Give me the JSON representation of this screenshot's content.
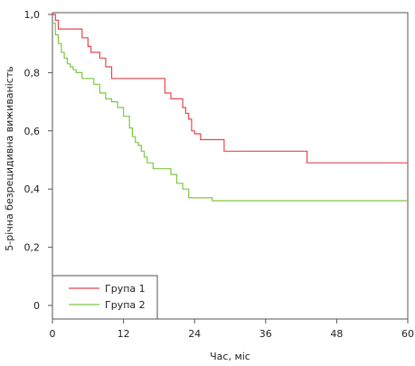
{
  "chart_data": {
    "type": "line",
    "title": "",
    "xlabel": "Час, міс",
    "ylabel": "5-річна безрецидивна виживаність",
    "xlim": [
      0,
      60
    ],
    "ylim": [
      0,
      1.0
    ],
    "x_ticks": [
      0,
      12,
      24,
      36,
      48,
      60
    ],
    "x_tick_labels": [
      "0",
      "12",
      "24",
      "36",
      "48",
      "60"
    ],
    "y_ticks": [
      0,
      0.2,
      0.4,
      0.6,
      0.8,
      1.0
    ],
    "y_tick_labels": [
      "0",
      "0,2",
      "0,4",
      "0,6",
      "0,8",
      "1,0"
    ],
    "grid": false,
    "legend_position": "bottom-left",
    "step": true,
    "series": [
      {
        "name": "Група 1",
        "color": "#e8474c",
        "x": [
          0,
          0.5,
          1,
          1.5,
          5,
          6,
          6.5,
          7,
          8,
          9,
          10,
          18,
          19,
          20,
          21,
          22,
          22.5,
          23,
          23.5,
          24,
          25,
          29,
          43,
          60
        ],
        "y": [
          1.0,
          0.98,
          0.95,
          0.95,
          0.92,
          0.89,
          0.87,
          0.87,
          0.85,
          0.82,
          0.78,
          0.78,
          0.73,
          0.71,
          0.71,
          0.68,
          0.66,
          0.64,
          0.6,
          0.59,
          0.57,
          0.53,
          0.49,
          0.49
        ]
      },
      {
        "name": "Група 2",
        "color": "#7ec843",
        "x": [
          0,
          0.5,
          1,
          1.5,
          2,
          2.5,
          3,
          3.5,
          4,
          5,
          5.5,
          7,
          8,
          9,
          10,
          11,
          12,
          13,
          13.5,
          14,
          14.5,
          15,
          15.5,
          16,
          16.5,
          17,
          18,
          20,
          21,
          22,
          23,
          27,
          60
        ],
        "y": [
          0.97,
          0.93,
          0.9,
          0.87,
          0.85,
          0.83,
          0.82,
          0.81,
          0.8,
          0.78,
          0.78,
          0.76,
          0.73,
          0.71,
          0.7,
          0.68,
          0.65,
          0.61,
          0.58,
          0.56,
          0.55,
          0.53,
          0.51,
          0.49,
          0.49,
          0.47,
          0.47,
          0.45,
          0.42,
          0.4,
          0.37,
          0.36,
          0.36
        ]
      }
    ]
  }
}
